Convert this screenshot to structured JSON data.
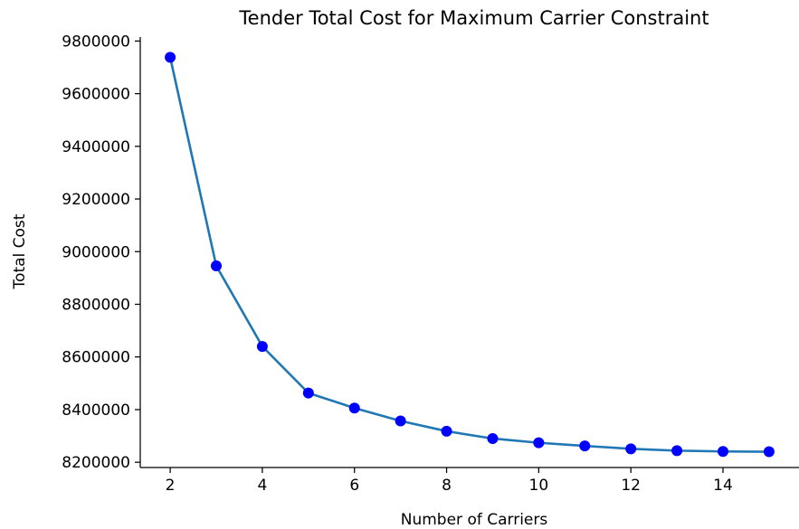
{
  "chart_data": {
    "type": "line",
    "title": "Tender Total Cost for Maximum Carrier Constraint",
    "xlabel": "Number of Carriers",
    "ylabel": "Total Cost",
    "xlim": [
      1.35,
      15.65
    ],
    "ylim": [
      8180000,
      9815000
    ],
    "xticks": [
      2,
      4,
      6,
      8,
      10,
      12,
      14
    ],
    "yticks": [
      8200000,
      8400000,
      8600000,
      8800000,
      9000000,
      9200000,
      9400000,
      9600000,
      9800000
    ],
    "grid": false,
    "series": [
      {
        "x": [
          2,
          3,
          4,
          5,
          6,
          7,
          8,
          9,
          10,
          11,
          12,
          13,
          14,
          15
        ],
        "y": [
          9738000,
          8946000,
          8640000,
          8463000,
          8406000,
          8357000,
          8318000,
          8290000,
          8274000,
          8262000,
          8251000,
          8244000,
          8241000,
          8240000
        ],
        "line_color": "#1f77b4",
        "marker_color": "#0000ff"
      }
    ]
  }
}
